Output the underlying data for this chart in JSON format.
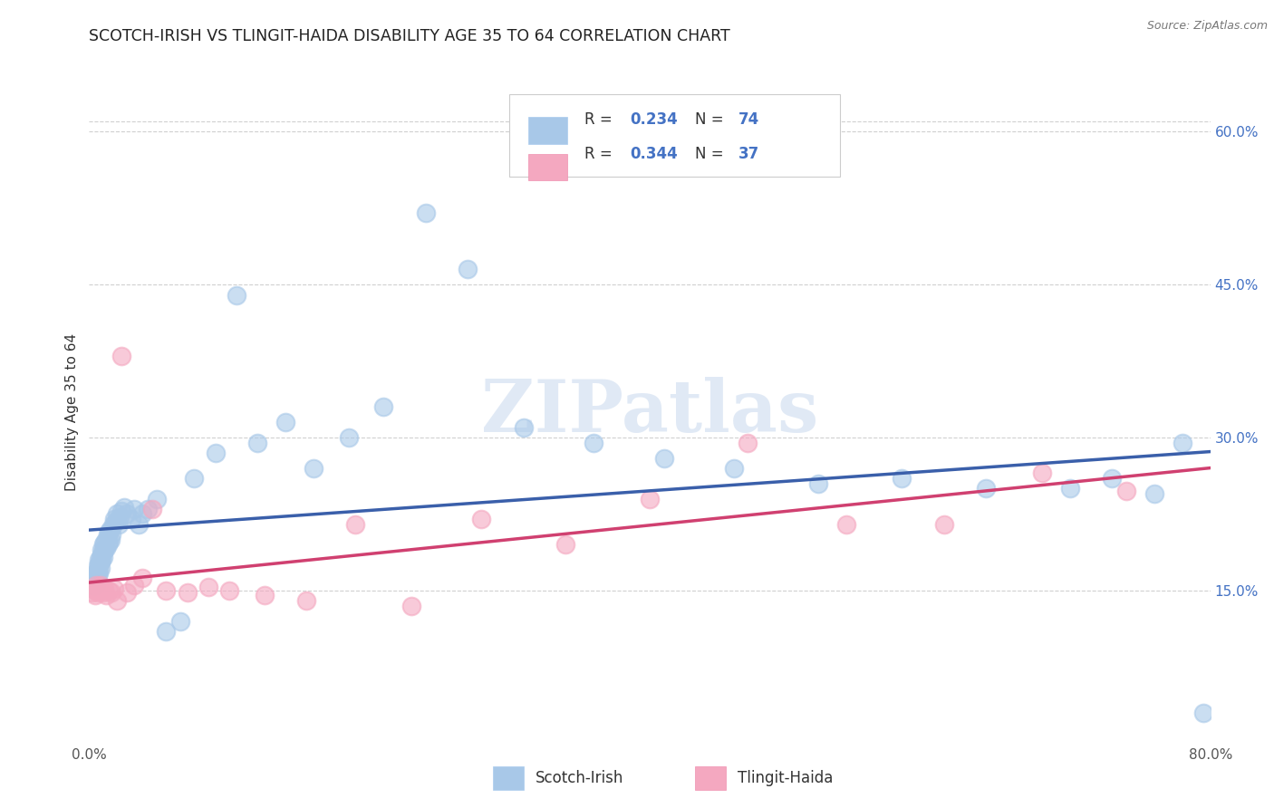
{
  "title": "SCOTCH-IRISH VS TLINGIT-HAIDA DISABILITY AGE 35 TO 64 CORRELATION CHART",
  "source": "Source: ZipAtlas.com",
  "ylabel": "Disability Age 35 to 64",
  "xlim": [
    0.0,
    0.8
  ],
  "ylim": [
    0.0,
    0.65
  ],
  "scotch_irish_color": "#a8c8e8",
  "tlingit_haida_color": "#f4a8c0",
  "scotch_irish_line_color": "#3a5faa",
  "tlingit_haida_line_color": "#d04070",
  "watermark": "ZIPatlas",
  "background_color": "#ffffff",
  "scotch_irish_x": [
    0.002,
    0.003,
    0.003,
    0.004,
    0.004,
    0.004,
    0.005,
    0.005,
    0.005,
    0.006,
    0.006,
    0.006,
    0.007,
    0.007,
    0.007,
    0.008,
    0.008,
    0.008,
    0.009,
    0.009,
    0.009,
    0.01,
    0.01,
    0.01,
    0.011,
    0.011,
    0.012,
    0.012,
    0.013,
    0.013,
    0.014,
    0.014,
    0.015,
    0.015,
    0.016,
    0.017,
    0.018,
    0.019,
    0.02,
    0.021,
    0.022,
    0.023,
    0.025,
    0.027,
    0.03,
    0.032,
    0.035,
    0.038,
    0.042,
    0.048,
    0.055,
    0.065,
    0.075,
    0.09,
    0.105,
    0.12,
    0.14,
    0.16,
    0.185,
    0.21,
    0.24,
    0.27,
    0.31,
    0.36,
    0.41,
    0.46,
    0.52,
    0.58,
    0.64,
    0.7,
    0.73,
    0.76,
    0.78,
    0.795
  ],
  "scotch_irish_y": [
    0.155,
    0.158,
    0.162,
    0.155,
    0.16,
    0.165,
    0.158,
    0.162,
    0.168,
    0.165,
    0.17,
    0.175,
    0.168,
    0.175,
    0.18,
    0.172,
    0.178,
    0.183,
    0.18,
    0.185,
    0.19,
    0.183,
    0.188,
    0.195,
    0.19,
    0.197,
    0.192,
    0.2,
    0.195,
    0.205,
    0.198,
    0.208,
    0.2,
    0.21,
    0.205,
    0.215,
    0.22,
    0.218,
    0.225,
    0.215,
    0.222,
    0.228,
    0.232,
    0.225,
    0.22,
    0.23,
    0.215,
    0.225,
    0.23,
    0.24,
    0.11,
    0.12,
    0.26,
    0.285,
    0.44,
    0.295,
    0.315,
    0.27,
    0.3,
    0.33,
    0.52,
    0.465,
    0.31,
    0.295,
    0.28,
    0.27,
    0.255,
    0.26,
    0.25,
    0.25,
    0.26,
    0.245,
    0.295,
    0.03
  ],
  "tlingit_haida_x": [
    0.002,
    0.003,
    0.004,
    0.005,
    0.005,
    0.006,
    0.007,
    0.008,
    0.009,
    0.01,
    0.011,
    0.012,
    0.014,
    0.016,
    0.018,
    0.02,
    0.023,
    0.027,
    0.032,
    0.038,
    0.045,
    0.055,
    0.07,
    0.085,
    0.1,
    0.125,
    0.155,
    0.19,
    0.23,
    0.28,
    0.34,
    0.4,
    0.47,
    0.54,
    0.61,
    0.68,
    0.74
  ],
  "tlingit_haida_y": [
    0.148,
    0.152,
    0.145,
    0.15,
    0.155,
    0.148,
    0.153,
    0.155,
    0.15,
    0.148,
    0.152,
    0.145,
    0.15,
    0.148,
    0.152,
    0.14,
    0.38,
    0.148,
    0.155,
    0.162,
    0.23,
    0.15,
    0.148,
    0.153,
    0.15,
    0.145,
    0.14,
    0.215,
    0.135,
    0.22,
    0.195,
    0.24,
    0.295,
    0.215,
    0.215,
    0.265,
    0.248
  ]
}
